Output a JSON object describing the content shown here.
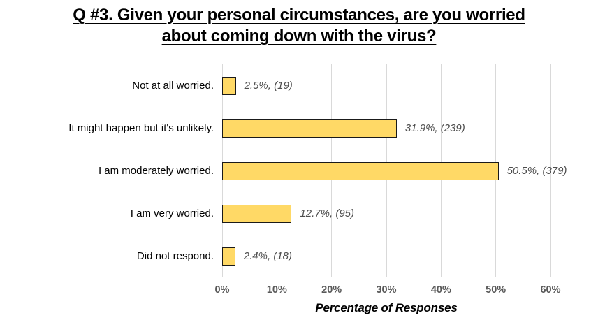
{
  "title": {
    "text": "Q #3. Given your personal circumstances, are you worried about coming down with the virus?",
    "line1": "Q #3. Given your personal circumstances, are you worried",
    "line2": "about coming down with the virus?"
  },
  "chart_data": {
    "type": "bar",
    "orientation": "horizontal",
    "title": "Q #3. Given your personal circumstances, are you worried about coming down with the virus?",
    "categories": [
      "Not at all worried.",
      "It might happen but it's unlikely.",
      "I am moderately worried.",
      "I am very worried.",
      "Did not respond."
    ],
    "values": [
      2.5,
      31.9,
      50.5,
      12.7,
      2.4
    ],
    "counts": [
      19,
      239,
      379,
      95,
      18
    ],
    "data_labels": [
      "2.5%, (19)",
      "31.9%, (239)",
      "50.5%, (379)",
      "12.7%, (95)",
      "2.4%, (18)"
    ],
    "xlabel": "Percentage of Responses",
    "ylabel": "",
    "xticks": [
      "0%",
      "10%",
      "20%",
      "30%",
      "40%",
      "50%",
      "60%"
    ],
    "xlim": [
      0,
      60
    ],
    "grid": "vertical-only",
    "legend": "none",
    "colors": {
      "bar_fill": "#FFD966",
      "bar_border": "#1A1A1A",
      "gridline": "#D9D9D9",
      "tick_label": "#595959",
      "data_label": "#4D4D4D",
      "category_label": "#000000",
      "background": "#FFFFFF"
    }
  }
}
